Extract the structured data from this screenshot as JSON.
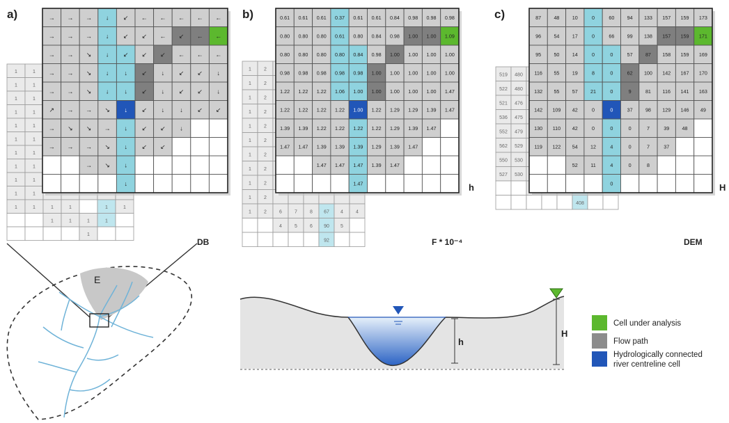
{
  "panels": [
    {
      "id": "a",
      "letter": "a)",
      "caption": "DB"
    },
    {
      "id": "b",
      "letter": "b)",
      "caption": "F * 10⁻⁴",
      "side_label": "h"
    },
    {
      "id": "c",
      "letter": "c)",
      "caption": "DEM",
      "side_label": "H"
    }
  ],
  "catchment": {
    "region_label": "E"
  },
  "cross_section": {
    "h_label": "h",
    "H_label": "H"
  },
  "legend": {
    "items": [
      {
        "label": "Cell under analysis",
        "color": "#5cb82e"
      },
      {
        "label": "Flow path",
        "color": "#8c8c8c"
      },
      {
        "label": "Hydrologically connected river centreline cell",
        "color": "#2156b8"
      }
    ]
  },
  "colors": {
    "cell_gray": "#cfcfcf",
    "dark_gray": "#7f7f7f",
    "light_blue": "#8fd3df",
    "blue": "#2156b8",
    "green": "#5cb82e"
  },
  "grids": {
    "a": [
      [
        "→",
        "→",
        "→",
        "↓",
        "↙",
        "←",
        "←",
        "←",
        "←",
        "←"
      ],
      [
        "→",
        "→",
        "→",
        "↓",
        "↙",
        "↙",
        "←",
        "↙",
        "←",
        "←"
      ],
      [
        "→",
        "→",
        "↘",
        "↓",
        "↙",
        "↙",
        "↙",
        "←",
        "←",
        "←"
      ],
      [
        "→",
        "→",
        "↘",
        "↓",
        "↓",
        "↙",
        "↓",
        "↙",
        "↙",
        "↓"
      ],
      [
        "→",
        "→",
        "↘",
        "↓",
        "↓",
        "↙",
        "↓",
        "↙",
        "↙",
        "↓"
      ],
      [
        "↗",
        "→",
        "→",
        "↘",
        "↓",
        "↙",
        "↓",
        "↓",
        "↙",
        "↙"
      ],
      [
        "→",
        "↘",
        "↘",
        "→",
        "↓",
        "↙",
        "↙",
        "↓",
        "",
        ""
      ],
      [
        "→",
        "→",
        "→",
        "↘",
        "↓",
        "↙",
        "↙",
        "",
        "",
        ""
      ],
      [
        "",
        "",
        "→",
        "↘",
        "↓",
        "",
        "",
        "",
        "",
        ""
      ],
      [
        "",
        "",
        "",
        "",
        "↓",
        "",
        "",
        "",
        "",
        ""
      ]
    ],
    "b": [
      [
        "0.61",
        "0.61",
        "0.61",
        "0.37",
        "0.61",
        "0.61",
        "0.84",
        "0.98",
        "0.98",
        "0.98"
      ],
      [
        "0.80",
        "0.80",
        "0.80",
        "0.61",
        "0.80",
        "0.84",
        "0.98",
        "1.00",
        "1.00",
        "1.09"
      ],
      [
        "0.80",
        "0.80",
        "0.80",
        "0.80",
        "0.84",
        "0.98",
        "1.00",
        "1.00",
        "1.00",
        "1.00"
      ],
      [
        "0.98",
        "0.98",
        "0.98",
        "0.98",
        "0.98",
        "1.00",
        "1.00",
        "1.00",
        "1.00",
        "1.00"
      ],
      [
        "1.22",
        "1.22",
        "1.22",
        "1.06",
        "1.00",
        "1.00",
        "1.00",
        "1.00",
        "1.00",
        "1.47"
      ],
      [
        "1.22",
        "1.22",
        "1.22",
        "1.22",
        "1.00",
        "1.22",
        "1.29",
        "1.29",
        "1.39",
        "1.47"
      ],
      [
        "1.39",
        "1.39",
        "1.22",
        "1.22",
        "1.22",
        "1.22",
        "1.29",
        "1.39",
        "1.47",
        ""
      ],
      [
        "1.47",
        "1.47",
        "1.39",
        "1.39",
        "1.39",
        "1.29",
        "1.39",
        "1.47",
        "",
        ""
      ],
      [
        "",
        "",
        "1.47",
        "1.47",
        "1.47",
        "1.39",
        "1.47",
        "",
        "",
        ""
      ],
      [
        "",
        "",
        "",
        "",
        "1.47",
        "",
        "",
        "",
        "",
        ""
      ]
    ],
    "c": [
      [
        "87",
        "48",
        "10",
        "0",
        "60",
        "94",
        "133",
        "157",
        "159",
        "173"
      ],
      [
        "96",
        "54",
        "17",
        "0",
        "66",
        "99",
        "138",
        "157",
        "159",
        "171"
      ],
      [
        "95",
        "50",
        "14",
        "0",
        "0",
        "57",
        "87",
        "158",
        "159",
        "169"
      ],
      [
        "116",
        "55",
        "19",
        "8",
        "0",
        "62",
        "100",
        "142",
        "167",
        "170"
      ],
      [
        "132",
        "55",
        "57",
        "21",
        "0",
        "9",
        "81",
        "116",
        "141",
        "163"
      ],
      [
        "142",
        "109",
        "42",
        "0",
        "0",
        "37",
        "98",
        "129",
        "146",
        "49"
      ],
      [
        "130",
        "110",
        "42",
        "0",
        "0",
        "0",
        "7",
        "39",
        "48",
        ""
      ],
      [
        "119",
        "122",
        "54",
        "12",
        "4",
        "0",
        "7",
        "37",
        "",
        ""
      ],
      [
        "",
        "",
        "52",
        "11",
        "4",
        "0",
        "8",
        "",
        "",
        ""
      ],
      [
        "",
        "",
        "",
        "",
        "0",
        "",
        "",
        "",
        "",
        ""
      ]
    ]
  },
  "behind": {
    "a": [
      [
        "1",
        "1",
        "",
        "",
        "",
        "",
        ""
      ],
      [
        "1",
        "1",
        "",
        "",
        "",
        "",
        ""
      ],
      [
        "1",
        "1",
        "",
        "",
        "",
        "",
        ""
      ],
      [
        "1",
        "1",
        "",
        "",
        "",
        "",
        ""
      ],
      [
        "1",
        "1",
        "",
        "",
        "",
        "",
        ""
      ],
      [
        "1",
        "1",
        "",
        "",
        "",
        "",
        ""
      ],
      [
        "1",
        "1",
        "",
        "",
        "",
        "",
        ""
      ],
      [
        "1",
        "1",
        "",
        "",
        "",
        "",
        ""
      ],
      [
        "1",
        "1",
        "",
        "",
        "",
        "",
        ""
      ],
      [
        "1",
        "1",
        "",
        "",
        "",
        "",
        ""
      ],
      [
        "1",
        "1",
        "1",
        "1",
        "",
        "1",
        "1"
      ],
      [
        "",
        "",
        "1",
        "1",
        "1",
        "1",
        ""
      ],
      [
        "",
        "",
        "",
        "",
        "1",
        "",
        ""
      ]
    ],
    "b": [
      [
        "1",
        "2",
        "",
        "",
        "",
        "",
        ""
      ],
      [
        "1",
        "2",
        "",
        "",
        "",
        "",
        ""
      ],
      [
        "1",
        "2",
        "",
        "",
        "",
        "",
        ""
      ],
      [
        "1",
        "2",
        "",
        "",
        "",
        "",
        ""
      ],
      [
        "1",
        "2",
        "",
        "",
        "",
        "",
        ""
      ],
      [
        "1",
        "2",
        "",
        "",
        "",
        "",
        ""
      ],
      [
        "1",
        "2",
        "",
        "",
        "",
        "",
        ""
      ],
      [
        "1",
        "2",
        "",
        "",
        "",
        "",
        ""
      ],
      [
        "1",
        "2",
        "",
        "",
        "",
        "",
        ""
      ],
      [
        "1",
        "2",
        "",
        "",
        "",
        "",
        ""
      ],
      [
        "1",
        "2",
        "6",
        "7",
        "8",
        "67",
        "4",
        "4"
      ],
      [
        "",
        "",
        "4",
        "5",
        "6",
        "90",
        "5",
        ""
      ],
      [
        "",
        "",
        "",
        "",
        "",
        "92",
        "",
        ""
      ]
    ],
    "c": [
      [
        "519",
        "480",
        "",
        "",
        "",
        "",
        "",
        ""
      ],
      [
        "522",
        "480",
        "",
        "",
        "",
        "",
        "",
        ""
      ],
      [
        "521",
        "476",
        "",
        "",
        "",
        "",
        "",
        ""
      ],
      [
        "536",
        "475",
        "",
        "",
        "",
        "",
        "",
        ""
      ],
      [
        "552",
        "479",
        "",
        "",
        "",
        "",
        "",
        ""
      ],
      [
        "562",
        "529",
        "",
        "",
        "",
        "",
        "",
        ""
      ],
      [
        "550",
        "530",
        "",
        "",
        "",
        "",
        "",
        ""
      ],
      [
        "527",
        "530",
        "462",
        "420",
        "412",
        "410",
        "415",
        "445"
      ],
      [
        "",
        "",
        "460",
        "419",
        "412",
        "408",
        "414",
        ""
      ],
      [
        "",
        "",
        "",
        "",
        "",
        "408",
        "",
        ""
      ]
    ]
  }
}
